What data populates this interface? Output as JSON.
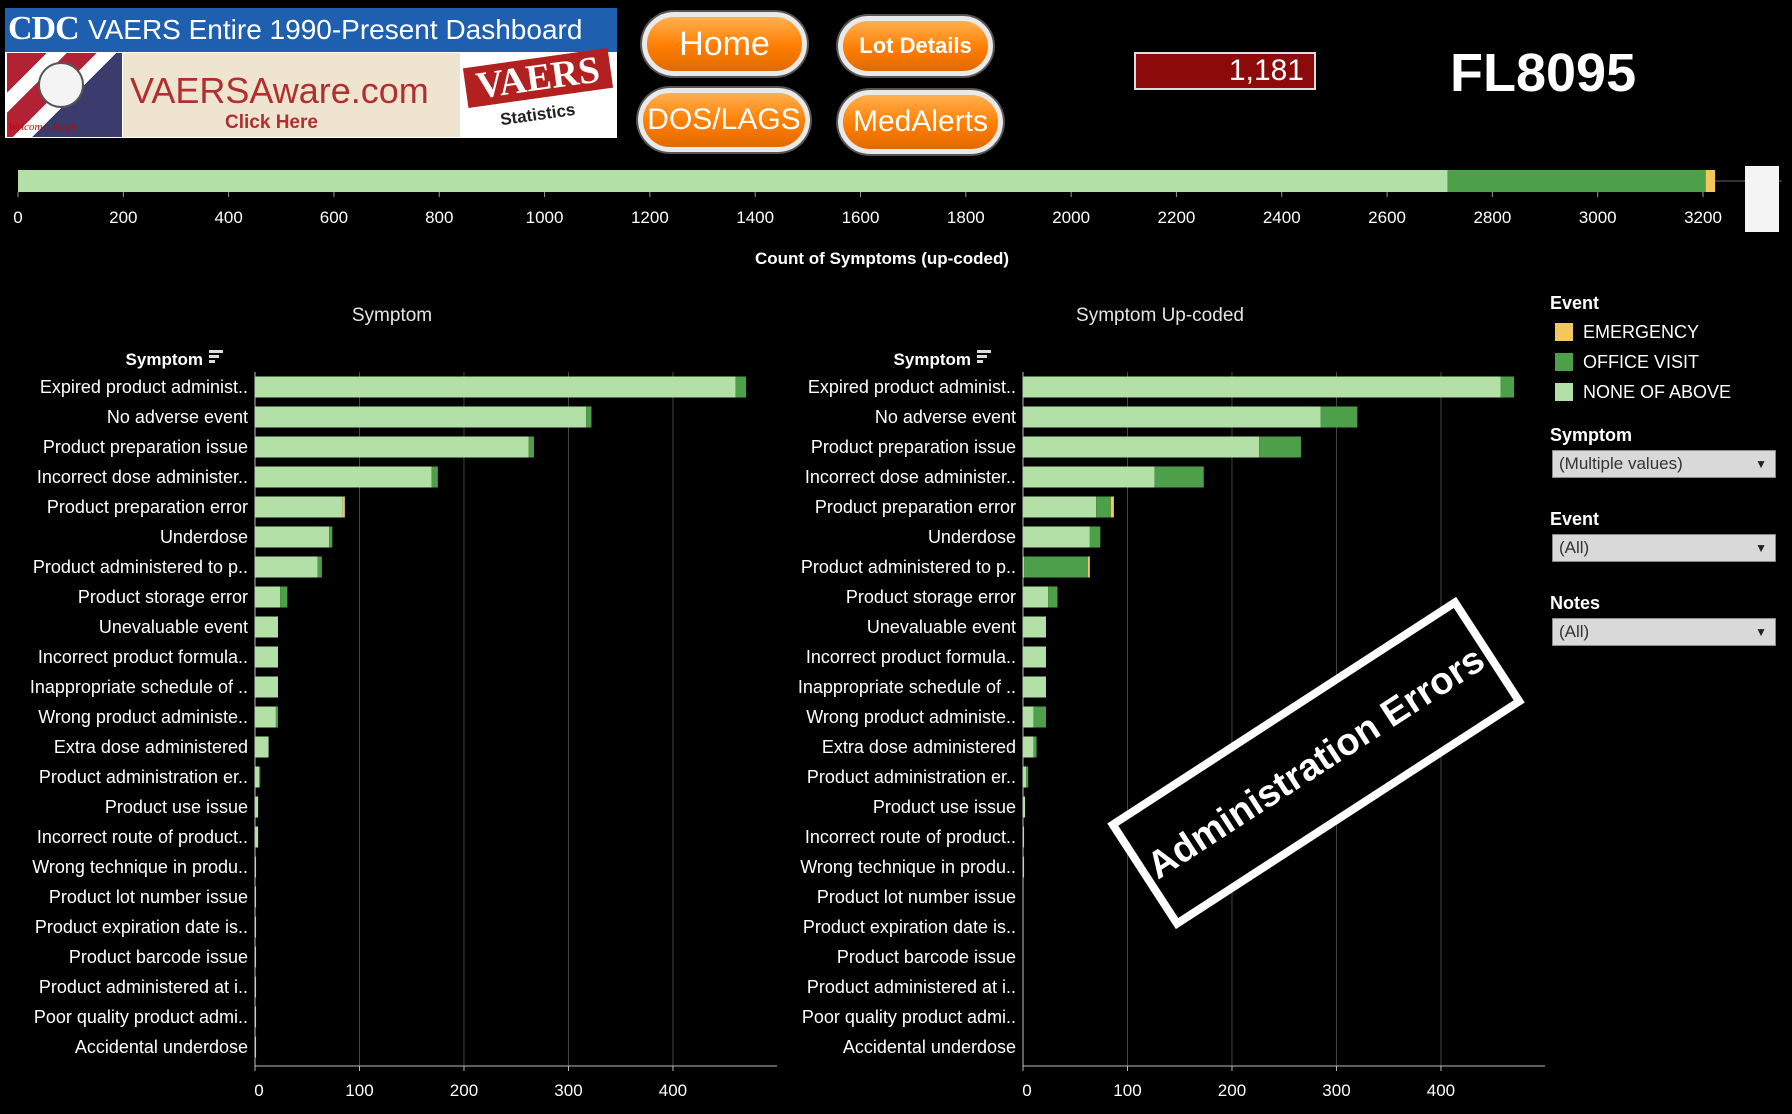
{
  "header": {
    "cdc_logo": "CDC",
    "title": "VAERS Entire 1990-Present Dashboard",
    "eagle_caption": "Welcome, Eagle",
    "vaersaware_name": "VAERSAware.com",
    "vaersaware_click": "Click Here",
    "vaers_logo_word": "VAERS",
    "vaers_logo_sub": "Statistics"
  },
  "nav": {
    "home_label": "Home",
    "lot_details_label": "Lot Details",
    "dos_lags_label": "DOS/LAGS",
    "medalerts_label": "MedAlerts"
  },
  "kpi": {
    "count": "1,181",
    "lot": "FL8095"
  },
  "stamp_text": "Administration Errors",
  "filters": {
    "event_legend_title": "Event",
    "symptom_title": "Symptom",
    "symptom_value": "(Multiple values)",
    "event_title": "Event",
    "event_value": "(All)",
    "notes_title": "Notes",
    "notes_value": "(All)"
  },
  "colors": {
    "EMERGENCY": "#f2c75c",
    "OFFICE VISIT": "#4e9f4a",
    "NONE OF ABOVE": "#b3e0a6"
  },
  "chart_data": [
    {
      "type": "bar",
      "orientation": "horizontal",
      "xlabel": "Count of Symptoms (up-coded)",
      "xlim": [
        0,
        3350
      ],
      "ticks": [
        0,
        200,
        400,
        600,
        800,
        1000,
        1200,
        1400,
        1600,
        1800,
        2000,
        2200,
        2400,
        2600,
        2800,
        3000,
        3200
      ],
      "series": [
        {
          "name": "NONE OF ABOVE",
          "values": [
            2715
          ]
        },
        {
          "name": "OFFICE VISIT",
          "values": [
            490
          ]
        },
        {
          "name": "EMERGENCY",
          "values": [
            18
          ]
        }
      ]
    },
    {
      "type": "bar",
      "orientation": "horizontal",
      "title": "Symptom",
      "ylabel": "Symptom",
      "xlim": [
        0,
        490
      ],
      "ticks": [
        0,
        100,
        200,
        300,
        400
      ],
      "categories": [
        "Expired product administ..",
        "No adverse event",
        "Product preparation issue",
        "Incorrect dose administer..",
        "Product preparation error",
        "Underdose",
        "Product administered to p..",
        "Product storage error",
        "Unevaluable event",
        "Incorrect product formula..",
        "Inappropriate schedule of ..",
        "Wrong product administe..",
        "Extra dose administered",
        "Product administration er..",
        "Product use issue",
        "Incorrect route of product..",
        "Wrong technique in produ..",
        "Product lot number issue",
        "Product expiration date is..",
        "Product barcode issue",
        "Product administered at i..",
        "Poor quality product admi..",
        "Accidental underdose"
      ],
      "series": [
        {
          "name": "NONE OF ABOVE",
          "values": [
            460,
            317,
            262,
            169,
            84,
            71,
            60,
            24,
            22,
            22,
            22,
            20,
            13,
            4,
            3,
            3,
            1,
            1,
            1,
            1,
            1,
            1,
            1
          ]
        },
        {
          "name": "OFFICE VISIT",
          "values": [
            10,
            5,
            5,
            6,
            0,
            3,
            4,
            7,
            0,
            0,
            0,
            2,
            0,
            1,
            0,
            0,
            0,
            0,
            0,
            0,
            0,
            0,
            0
          ]
        },
        {
          "name": "EMERGENCY",
          "values": [
            0,
            0,
            0,
            0,
            2,
            0,
            0,
            0,
            0,
            0,
            0,
            0,
            0,
            0,
            0,
            0,
            0,
            0,
            0,
            0,
            0,
            0,
            0
          ]
        }
      ]
    },
    {
      "type": "bar",
      "orientation": "horizontal",
      "title": "Symptom Up-coded",
      "ylabel": "Symptom",
      "xlim": [
        0,
        490
      ],
      "ticks": [
        0,
        100,
        200,
        300,
        400
      ],
      "categories": [
        "Expired product administ..",
        "No adverse event",
        "Product preparation issue",
        "Incorrect dose administer..",
        "Product preparation error",
        "Underdose",
        "Product administered to p..",
        "Product storage error",
        "Unevaluable event",
        "Incorrect product formula..",
        "Inappropriate schedule of ..",
        "Wrong product administe..",
        "Extra dose administered",
        "Product administration er..",
        "Product use issue",
        "Incorrect route of product..",
        "Wrong technique in produ..",
        "Product lot number issue",
        "Product expiration date is..",
        "Product barcode issue",
        "Product administered at i..",
        "Poor quality product admi..",
        "Accidental underdose"
      ],
      "series": [
        {
          "name": "NONE OF ABOVE",
          "values": [
            457,
            285,
            226,
            126,
            70,
            64,
            1,
            24,
            22,
            22,
            22,
            10,
            10,
            3,
            2,
            1,
            1,
            0,
            0,
            0,
            0,
            0,
            0
          ]
        },
        {
          "name": "OFFICE VISIT",
          "values": [
            13,
            35,
            40,
            47,
            14,
            10,
            61,
            9,
            0,
            0,
            0,
            12,
            3,
            2,
            0,
            0,
            0,
            0,
            0,
            0,
            0,
            0,
            0
          ]
        },
        {
          "name": "EMERGENCY",
          "values": [
            0,
            0,
            0,
            0,
            3,
            0,
            2,
            0,
            0,
            0,
            0,
            0,
            0,
            0,
            0,
            0,
            0,
            0,
            0,
            0,
            0,
            0,
            0
          ]
        }
      ]
    }
  ]
}
